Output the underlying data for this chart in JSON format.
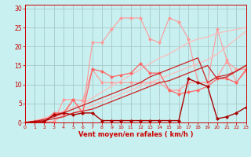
{
  "background_color": "#c8f0f0",
  "grid_color": "#a8c8c8",
  "xlabel": "Vent moyen/en rafales ( km/h )",
  "xlabel_color": "#cc0000",
  "tick_color": "#cc0000",
  "x_values": [
    0,
    1,
    2,
    3,
    4,
    5,
    6,
    7,
    8,
    9,
    10,
    11,
    12,
    13,
    14,
    15,
    16,
    17,
    18,
    19,
    20,
    21,
    22,
    23
  ],
  "ylim": [
    0,
    31
  ],
  "xlim": [
    0,
    23
  ],
  "yticks": [
    0,
    5,
    10,
    15,
    20,
    25,
    30
  ],
  "lines": [
    {
      "color": "#ff9999",
      "lw": 0.8,
      "marker": "D",
      "ms": 2.0,
      "values": [
        0,
        0.2,
        0.2,
        0.3,
        6.0,
        6.0,
        5.8,
        14.0,
        10.5,
        10.5,
        10.5,
        10.5,
        10.5,
        10.5,
        10.5,
        8.5,
        8.5,
        10.5,
        10.5,
        10.5,
        12.0,
        16.0,
        14.0,
        14.0
      ]
    },
    {
      "color": "#ff9999",
      "lw": 0.8,
      "marker": "D",
      "ms": 2.0,
      "values": [
        0,
        0.2,
        0.2,
        0.3,
        2.0,
        6.0,
        2.5,
        21.0,
        21.0,
        24.5,
        27.5,
        27.5,
        27.5,
        22.0,
        21.0,
        27.5,
        26.5,
        22.0,
        10.5,
        10.5,
        24.5,
        16.5,
        10.5,
        13.5
      ]
    },
    {
      "color": "#ffbbbb",
      "lw": 0.9,
      "marker": "None",
      "ms": 0,
      "values": [
        0,
        0.5,
        1.0,
        1.5,
        2.0,
        2.5,
        3.5,
        4.5,
        5.5,
        6.5,
        7.5,
        8.5,
        9.5,
        10.5,
        11.5,
        12.5,
        13.5,
        14.5,
        15.5,
        16.5,
        18.0,
        20.0,
        22.0,
        24.0
      ]
    },
    {
      "color": "#ffbbbb",
      "lw": 0.9,
      "marker": "None",
      "ms": 0,
      "values": [
        0,
        0.5,
        1.2,
        2.0,
        3.0,
        4.0,
        5.0,
        6.5,
        8.0,
        9.5,
        11.0,
        12.5,
        14.0,
        15.5,
        17.0,
        18.0,
        19.5,
        21.0,
        22.0,
        22.5,
        23.5,
        24.0,
        24.5,
        25.0
      ]
    },
    {
      "color": "#ff6666",
      "lw": 0.9,
      "marker": "D",
      "ms": 2.0,
      "values": [
        0,
        0.2,
        0.2,
        2.5,
        2.5,
        6.0,
        2.5,
        14.0,
        13.5,
        12.0,
        12.5,
        13.0,
        15.5,
        13.0,
        13.0,
        8.5,
        7.5,
        8.0,
        8.5,
        9.5,
        11.5,
        11.5,
        10.5,
        14.0
      ]
    },
    {
      "color": "#cc2222",
      "lw": 0.9,
      "marker": "None",
      "ms": 0,
      "values": [
        0,
        0.3,
        0.5,
        1.0,
        1.5,
        2.5,
        3.0,
        3.5,
        4.5,
        5.5,
        6.5,
        7.5,
        8.5,
        9.5,
        10.5,
        11.0,
        12.0,
        13.0,
        14.0,
        15.0,
        11.5,
        12.0,
        13.5,
        15.0
      ]
    },
    {
      "color": "#cc2222",
      "lw": 0.9,
      "marker": "None",
      "ms": 0,
      "values": [
        0,
        0.3,
        0.8,
        1.5,
        2.5,
        3.5,
        4.5,
        5.5,
        6.5,
        7.5,
        8.5,
        9.5,
        10.5,
        12.0,
        13.0,
        14.0,
        15.0,
        16.0,
        17.0,
        10.5,
        12.0,
        12.5,
        13.5,
        15.0
      ]
    },
    {
      "color": "#aa0000",
      "lw": 1.0,
      "marker": "D",
      "ms": 2.0,
      "values": [
        0,
        0.2,
        0.2,
        2.0,
        2.5,
        2.0,
        2.5,
        2.5,
        0.5,
        0.5,
        0.5,
        0.5,
        0.5,
        0.5,
        0.5,
        0.5,
        0.5,
        11.5,
        10.5,
        9.5,
        1.0,
        1.5,
        2.5,
        4.0
      ]
    }
  ]
}
